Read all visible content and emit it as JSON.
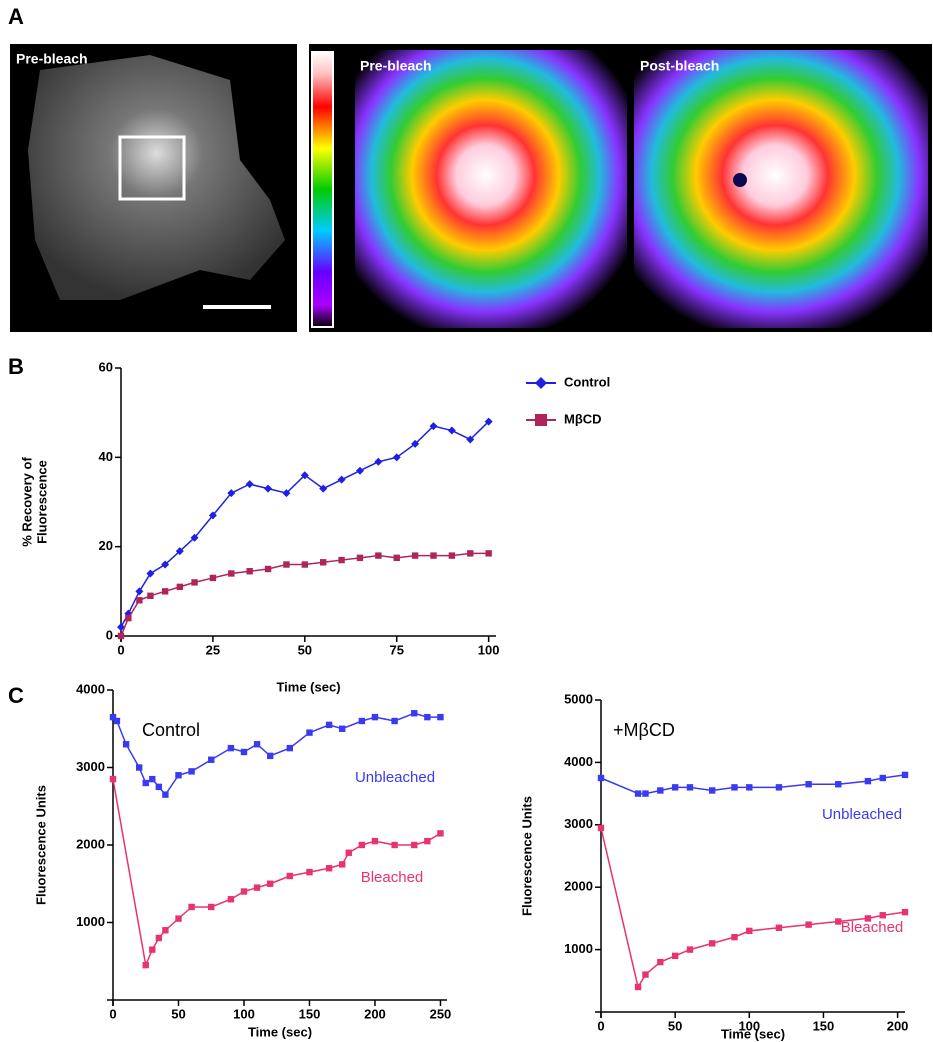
{
  "panels": {
    "labels": [
      "A",
      "B",
      "C"
    ],
    "image_labels": [
      "Pre-bleach",
      "Pre-bleach",
      "Post-bleach"
    ]
  },
  "chart_data": [
    {
      "type": "line",
      "xlabel": "Time (sec)",
      "ylabel": [
        "% Recovery of",
        "Fluorescence"
      ],
      "x": [
        0,
        2,
        5,
        8,
        12,
        16,
        20,
        25,
        30,
        35,
        40,
        45,
        50,
        55,
        60,
        65,
        70,
        75,
        80,
        85,
        90,
        95,
        100
      ],
      "xlim": [
        0,
        102
      ],
      "xticks": [
        0,
        25,
        50,
        75,
        100
      ],
      "ylim": [
        0,
        60
      ],
      "yticks": [
        0,
        20,
        40,
        60
      ],
      "legend": "top-right",
      "series": [
        {
          "name": "Control",
          "color": "#1f1fe6",
          "marker": "diamond",
          "values": [
            2,
            5,
            10,
            14,
            16,
            19,
            22,
            27,
            32,
            34,
            33,
            32,
            36,
            33,
            35,
            37,
            39,
            40,
            43,
            47,
            46,
            44,
            48
          ]
        },
        {
          "name": "MβCD",
          "color": "#b0245c",
          "marker": "square",
          "values": [
            0,
            4,
            8,
            9,
            10,
            11,
            12,
            13,
            14,
            14.5,
            15,
            16,
            16,
            16.5,
            17,
            17.5,
            18,
            17.5,
            18,
            18,
            18,
            18.5,
            18.5
          ]
        }
      ]
    },
    {
      "type": "line",
      "title": "Control",
      "xlabel": "Time (sec)",
      "ylabel": "Fluorescence Units",
      "xlim": [
        0,
        255
      ],
      "xticks": [
        0,
        50,
        100,
        150,
        200,
        250
      ],
      "ylim": [
        0,
        4000
      ],
      "yticks": [
        1000,
        2000,
        3000,
        4000
      ],
      "series": [
        {
          "name": "Unbleached",
          "color": "#3a3af0",
          "marker": "square",
          "x": [
            0,
            3,
            10,
            20,
            25,
            30,
            35,
            40,
            50,
            60,
            75,
            90,
            100,
            110,
            120,
            135,
            150,
            165,
            175,
            190,
            200,
            215,
            230,
            240,
            250
          ],
          "values": [
            3650,
            3600,
            3300,
            3000,
            2800,
            2850,
            2750,
            2650,
            2900,
            2950,
            3100,
            3250,
            3200,
            3300,
            3150,
            3250,
            3450,
            3550,
            3500,
            3600,
            3650,
            3600,
            3700,
            3650,
            3650
          ]
        },
        {
          "name": "Bleached",
          "color": "#e8336f",
          "marker": "square",
          "x": [
            0,
            25,
            30,
            35,
            40,
            50,
            60,
            75,
            90,
            100,
            110,
            120,
            135,
            150,
            165,
            175,
            180,
            190,
            200,
            215,
            230,
            240,
            250
          ],
          "values": [
            2850,
            450,
            650,
            800,
            900,
            1050,
            1200,
            1200,
            1300,
            1400,
            1450,
            1500,
            1600,
            1650,
            1700,
            1750,
            1900,
            2000,
            2050,
            2000,
            2000,
            2050,
            2150
          ]
        }
      ]
    },
    {
      "type": "line",
      "title": "+MβCD",
      "xlabel": "Time (sec)",
      "ylabel": "Fluorescence Units",
      "xlim": [
        0,
        205
      ],
      "xticks": [
        0,
        50,
        100,
        150,
        200
      ],
      "ylim": [
        0,
        5000
      ],
      "yticks": [
        1000,
        2000,
        3000,
        4000,
        5000
      ],
      "series": [
        {
          "name": "Unbleached",
          "color": "#3a3af0",
          "marker": "square",
          "x": [
            0,
            25,
            30,
            40,
            50,
            60,
            75,
            90,
            100,
            120,
            140,
            160,
            180,
            190,
            205
          ],
          "values": [
            3750,
            3500,
            3500,
            3550,
            3600,
            3600,
            3550,
            3600,
            3600,
            3600,
            3650,
            3650,
            3700,
            3750,
            3800
          ]
        },
        {
          "name": "Bleached",
          "color": "#e8336f",
          "marker": "square",
          "x": [
            0,
            25,
            30,
            40,
            50,
            60,
            75,
            90,
            100,
            120,
            140,
            160,
            180,
            190,
            205
          ],
          "values": [
            2950,
            400,
            600,
            800,
            900,
            1000,
            1100,
            1200,
            1300,
            1350,
            1400,
            1450,
            1500,
            1550,
            1600
          ]
        }
      ]
    }
  ]
}
